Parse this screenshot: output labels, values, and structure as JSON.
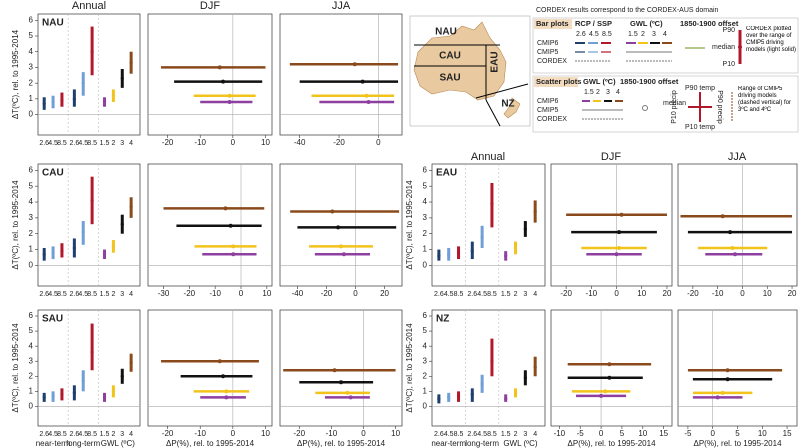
{
  "column_titles": [
    "Annual",
    "DJF",
    "JJA"
  ],
  "map": {
    "labels": [
      "NAU",
      "CAU",
      "EAU",
      "SAU",
      "NZ"
    ]
  },
  "legend": {
    "title": "CORDEX results correspond to the CORDEX-AUS domain",
    "bar_heading": "Bar plots",
    "rcp_heading": "RCP / SSP",
    "gwl_heading": "GWL (ºC)",
    "offset_heading": "1850-1900 offset",
    "rows": [
      "CMIP6",
      "CMIP5",
      "CORDEX"
    ],
    "rcps": [
      "2.6",
      "4.5",
      "8.5"
    ],
    "gwls": [
      "1.5",
      "2",
      "3",
      "4"
    ],
    "p90": "P90",
    "median": "median",
    "p10": "P10",
    "cordex_note": "CORDEX plotted over the range of CMIP5 driving models (light solid)",
    "scatter_heading": "Scatter plots",
    "p90_temp": "P90 temp",
    "p10_temp": "P10 temp",
    "p10_precip": "P10 precip",
    "p90_precip": "P90 precip",
    "cmip5_note": "Range of CMIP5 driving models (dashed vertical) for 3ºC and 4ºC"
  },
  "chart_data": [
    {
      "type": "range",
      "region": "NAU",
      "ylabel": "ΔT(ºC), rel. to 1995-2014",
      "categories": [
        "2.6",
        "4.5",
        "8.5",
        "2.6",
        "4.5",
        "8.5",
        "1.5",
        "2",
        "3",
        "4"
      ],
      "colors": [
        "#1d3f6e",
        "#6f9fd6",
        "#b2182b",
        "#1d3f6e",
        "#6f9fd6",
        "#b2182b",
        "#8e3fa0",
        "#f2c31b",
        "#111111",
        "#8b4a1c"
      ],
      "values": [
        0.7,
        0.8,
        0.9,
        1.0,
        2.0,
        4.0,
        0.8,
        1.2,
        2.3,
        3.3
      ],
      "low": [
        0.3,
        0.4,
        0.5,
        0.5,
        1.2,
        2.5,
        0.5,
        0.8,
        1.7,
        2.6
      ],
      "high": [
        1.1,
        1.2,
        1.4,
        1.6,
        2.7,
        5.6,
        1.1,
        1.6,
        2.9,
        4.0
      ],
      "ylim": [
        -1.3,
        6.4
      ],
      "yticks": [
        0,
        1,
        2,
        3,
        4,
        5,
        6
      ]
    },
    {
      "type": "scatter",
      "ylim": [
        -1.3,
        6.4
      ],
      "xlim": [
        -26,
        12
      ],
      "xticks": [
        -20,
        -10,
        0,
        10
      ],
      "colors": [
        "#8e3fa0",
        "#f2c31b",
        "#111111",
        "#8b4a1c"
      ],
      "x": [
        -1,
        -1,
        -3,
        -4
      ],
      "values": [
        0.8,
        1.2,
        2.1,
        3.0
      ],
      "x_low": [
        -10,
        -12,
        -18,
        -22
      ],
      "x_high": [
        6,
        7,
        9,
        10
      ]
    },
    {
      "type": "scatter",
      "ylim": [
        -1.3,
        6.4
      ],
      "xlim": [
        -50,
        12
      ],
      "xticks": [
        -40,
        -20,
        0
      ],
      "colors": [
        "#8e3fa0",
        "#f2c31b",
        "#111111",
        "#8b4a1c"
      ],
      "x": [
        -5,
        -6,
        -8,
        -12
      ],
      "values": [
        0.8,
        1.2,
        2.1,
        3.2
      ],
      "x_low": [
        -30,
        -34,
        -40,
        -45
      ],
      "x_high": [
        8,
        8,
        10,
        10
      ]
    },
    {
      "type": "range",
      "region": "CAU",
      "ylabel": "ΔT(ºC), rel. to 1995-2014",
      "categories": [
        "2.6",
        "4.5",
        "8.5",
        "2.6",
        "4.5",
        "8.5",
        "1.5",
        "2",
        "3",
        "4"
      ],
      "colors": [
        "#1d3f6e",
        "#6f9fd6",
        "#b2182b",
        "#1d3f6e",
        "#6f9fd6",
        "#b2182b",
        "#8e3fa0",
        "#f2c31b",
        "#111111",
        "#8b4a1c"
      ],
      "values": [
        0.7,
        0.8,
        0.9,
        1.1,
        2.1,
        4.1,
        0.7,
        1.2,
        2.6,
        3.7
      ],
      "low": [
        0.3,
        0.4,
        0.5,
        0.5,
        1.3,
        2.6,
        0.4,
        0.8,
        2.0,
        3.0
      ],
      "high": [
        1.1,
        1.2,
        1.4,
        1.7,
        2.8,
        5.6,
        1.0,
        1.6,
        3.2,
        4.3
      ],
      "ylim": [
        -1.3,
        6.4
      ],
      "yticks": [
        0,
        1,
        2,
        3,
        4,
        5,
        6
      ]
    },
    {
      "type": "scatter",
      "ylim": [
        -1.3,
        6.4
      ],
      "xlim": [
        -36,
        12
      ],
      "xticks": [
        -30,
        -20,
        -10,
        0,
        10
      ],
      "colors": [
        "#8e3fa0",
        "#f2c31b",
        "#111111",
        "#8b4a1c"
      ],
      "x": [
        -3,
        -3,
        -4,
        -6
      ],
      "values": [
        0.7,
        1.2,
        2.5,
        3.6
      ],
      "x_low": [
        -15,
        -18,
        -25,
        -30
      ],
      "x_high": [
        6,
        6,
        8,
        9
      ]
    },
    {
      "type": "scatter",
      "ylim": [
        -1.3,
        6.4
      ],
      "xlim": [
        -52,
        32
      ],
      "xticks": [
        -40,
        -20,
        0,
        20
      ],
      "colors": [
        "#8e3fa0",
        "#f2c31b",
        "#111111",
        "#8b4a1c"
      ],
      "x": [
        -8,
        -10,
        -12,
        -16
      ],
      "values": [
        0.7,
        1.2,
        2.4,
        3.4
      ],
      "x_low": [
        -28,
        -32,
        -40,
        -45
      ],
      "x_high": [
        10,
        12,
        28,
        30
      ]
    },
    {
      "type": "range",
      "region": "EAU",
      "ylabel": "ΔT(ºC), rel. to 1995-2014",
      "categories": [
        "2.6",
        "4.5",
        "8.5",
        "2.6",
        "4.5",
        "8.5",
        "1.5",
        "2",
        "3",
        "4"
      ],
      "colors": [
        "#1d3f6e",
        "#6f9fd6",
        "#b2182b",
        "#1d3f6e",
        "#6f9fd6",
        "#b2182b",
        "#8e3fa0",
        "#f2c31b",
        "#111111",
        "#8b4a1c"
      ],
      "values": [
        0.6,
        0.7,
        0.8,
        0.9,
        1.8,
        3.9,
        0.6,
        1.1,
        2.3,
        3.4
      ],
      "low": [
        0.3,
        0.3,
        0.4,
        0.4,
        1.1,
        2.4,
        0.3,
        0.7,
        1.8,
        2.7
      ],
      "high": [
        1.0,
        1.1,
        1.2,
        1.5,
        2.5,
        5.2,
        0.9,
        1.5,
        2.8,
        4.1
      ],
      "ylim": [
        -1.3,
        6.4
      ],
      "yticks": [
        0,
        1,
        2,
        3,
        4,
        5,
        6
      ]
    },
    {
      "type": "scatter",
      "ylim": [
        -1.3,
        6.4
      ],
      "xlim": [
        -26,
        22
      ],
      "xticks": [
        -20,
        -10,
        0,
        10,
        20
      ],
      "colors": [
        "#8e3fa0",
        "#f2c31b",
        "#111111",
        "#8b4a1c"
      ],
      "x": [
        0,
        1,
        1,
        2
      ],
      "values": [
        0.7,
        1.1,
        2.1,
        3.2
      ],
      "x_low": [
        -12,
        -14,
        -18,
        -20
      ],
      "x_high": [
        10,
        12,
        16,
        20
      ]
    },
    {
      "type": "scatter",
      "ylim": [
        -1.3,
        6.4
      ],
      "xlim": [
        -26,
        22
      ],
      "xticks": [
        -20,
        -10,
        0,
        10,
        20
      ],
      "colors": [
        "#8e3fa0",
        "#f2c31b",
        "#111111",
        "#8b4a1c"
      ],
      "x": [
        -3,
        -4,
        -5,
        -8
      ],
      "values": [
        0.7,
        1.1,
        2.1,
        3.1
      ],
      "x_low": [
        -15,
        -18,
        -22,
        -25
      ],
      "x_high": [
        8,
        10,
        20,
        20
      ]
    },
    {
      "type": "range",
      "region": "SAU",
      "ylabel": "ΔT(ºC), rel. to 1995-2014",
      "categories": [
        "2.6",
        "4.5",
        "8.5",
        "2.6",
        "4.5",
        "8.5",
        "1.5",
        "2",
        "3",
        "4"
      ],
      "colors": [
        "#1d3f6e",
        "#6f9fd6",
        "#b2182b",
        "#1d3f6e",
        "#6f9fd6",
        "#b2182b",
        "#8e3fa0",
        "#f2c31b",
        "#111111",
        "#8b4a1c"
      ],
      "values": [
        0.6,
        0.7,
        0.8,
        0.9,
        1.7,
        3.6,
        0.6,
        1.0,
        2.0,
        2.9
      ],
      "low": [
        0.3,
        0.3,
        0.4,
        0.4,
        1.0,
        2.4,
        0.3,
        0.6,
        1.5,
        2.3
      ],
      "high": [
        0.9,
        1.0,
        1.2,
        1.4,
        2.4,
        5.5,
        0.9,
        1.4,
        2.5,
        3.5
      ],
      "ylim": [
        -1.3,
        6.4
      ],
      "yticks": [
        0,
        1,
        2,
        3,
        4,
        5,
        6
      ],
      "group_labels": [
        "near-term",
        "long-term",
        "GWL (ºC)"
      ]
    },
    {
      "type": "scatter",
      "xlabel": "ΔP(%), rel. to 1995-2014",
      "ylim": [
        -1.3,
        6.4
      ],
      "xlim": [
        -26,
        12
      ],
      "xticks": [
        -20,
        -10,
        0,
        10
      ],
      "colors": [
        "#8e3fa0",
        "#f2c31b",
        "#111111",
        "#8b4a1c"
      ],
      "x": [
        -2,
        -2,
        -3,
        -4
      ],
      "values": [
        0.6,
        1.0,
        2.0,
        3.0
      ],
      "x_low": [
        -10,
        -12,
        -16,
        -22
      ],
      "x_high": [
        4,
        5,
        6,
        8
      ]
    },
    {
      "type": "scatter",
      "xlabel": "ΔP(%), rel. to 1995-2014",
      "ylim": [
        -1.3,
        6.4
      ],
      "xlim": [
        -26,
        12
      ],
      "xticks": [
        -20,
        -10,
        0,
        10
      ],
      "colors": [
        "#8e3fa0",
        "#f2c31b",
        "#111111",
        "#8b4a1c"
      ],
      "x": [
        -4,
        -5,
        -7,
        -9
      ],
      "values": [
        0.6,
        0.9,
        1.6,
        2.4
      ],
      "x_low": [
        -12,
        -15,
        -20,
        -25
      ],
      "x_high": [
        2,
        2,
        3,
        10
      ]
    },
    {
      "type": "range",
      "region": "NZ",
      "ylabel": "ΔT(ºC), rel. to 1995-2014",
      "categories": [
        "2.6",
        "4.5",
        "8.5",
        "2.6",
        "4.5",
        "8.5",
        "1.5",
        "2",
        "3",
        "4"
      ],
      "colors": [
        "#1d3f6e",
        "#6f9fd6",
        "#b2182b",
        "#1d3f6e",
        "#6f9fd6",
        "#b2182b",
        "#8e3fa0",
        "#f2c31b",
        "#111111",
        "#8b4a1c"
      ],
      "values": [
        0.5,
        0.6,
        0.7,
        0.8,
        1.5,
        3.0,
        0.5,
        0.9,
        1.9,
        2.6
      ],
      "low": [
        0.2,
        0.3,
        0.3,
        0.3,
        0.9,
        2.0,
        0.3,
        0.6,
        1.4,
        2.0
      ],
      "high": [
        0.8,
        0.9,
        1.0,
        1.2,
        2.1,
        4.5,
        0.8,
        1.2,
        2.4,
        3.3
      ],
      "ylim": [
        -1.3,
        6.4
      ],
      "yticks": [
        0,
        1,
        2,
        3,
        4,
        5,
        6
      ],
      "group_labels": [
        "near-term",
        "long-term",
        "GWL (ºC)"
      ]
    },
    {
      "type": "scatter",
      "xlabel": "ΔP(%), rel. to 1995-2014",
      "ylim": [
        -1.3,
        6.4
      ],
      "xlim": [
        -12,
        17
      ],
      "xticks": [
        -10,
        -5,
        0,
        5,
        10,
        15
      ],
      "colors": [
        "#8e3fa0",
        "#f2c31b",
        "#111111",
        "#8b4a1c"
      ],
      "x": [
        0,
        1,
        2,
        2
      ],
      "values": [
        0.7,
        1.0,
        1.9,
        2.8
      ],
      "x_low": [
        -6,
        -7,
        -8,
        -8
      ],
      "x_high": [
        6,
        7,
        10,
        12
      ]
    },
    {
      "type": "scatter",
      "xlabel": "ΔP(%), rel. to 1995-2014",
      "ylim": [
        -1.3,
        6.4
      ],
      "xlim": [
        -7,
        17
      ],
      "xticks": [
        -5,
        0,
        5,
        10,
        15
      ],
      "colors": [
        "#8e3fa0",
        "#f2c31b",
        "#111111",
        "#8b4a1c"
      ],
      "x": [
        1,
        2,
        3,
        3
      ],
      "values": [
        0.6,
        0.9,
        1.8,
        2.4
      ],
      "x_low": [
        -4,
        -4,
        -4,
        -5
      ],
      "x_high": [
        6,
        8,
        12,
        14
      ]
    }
  ]
}
